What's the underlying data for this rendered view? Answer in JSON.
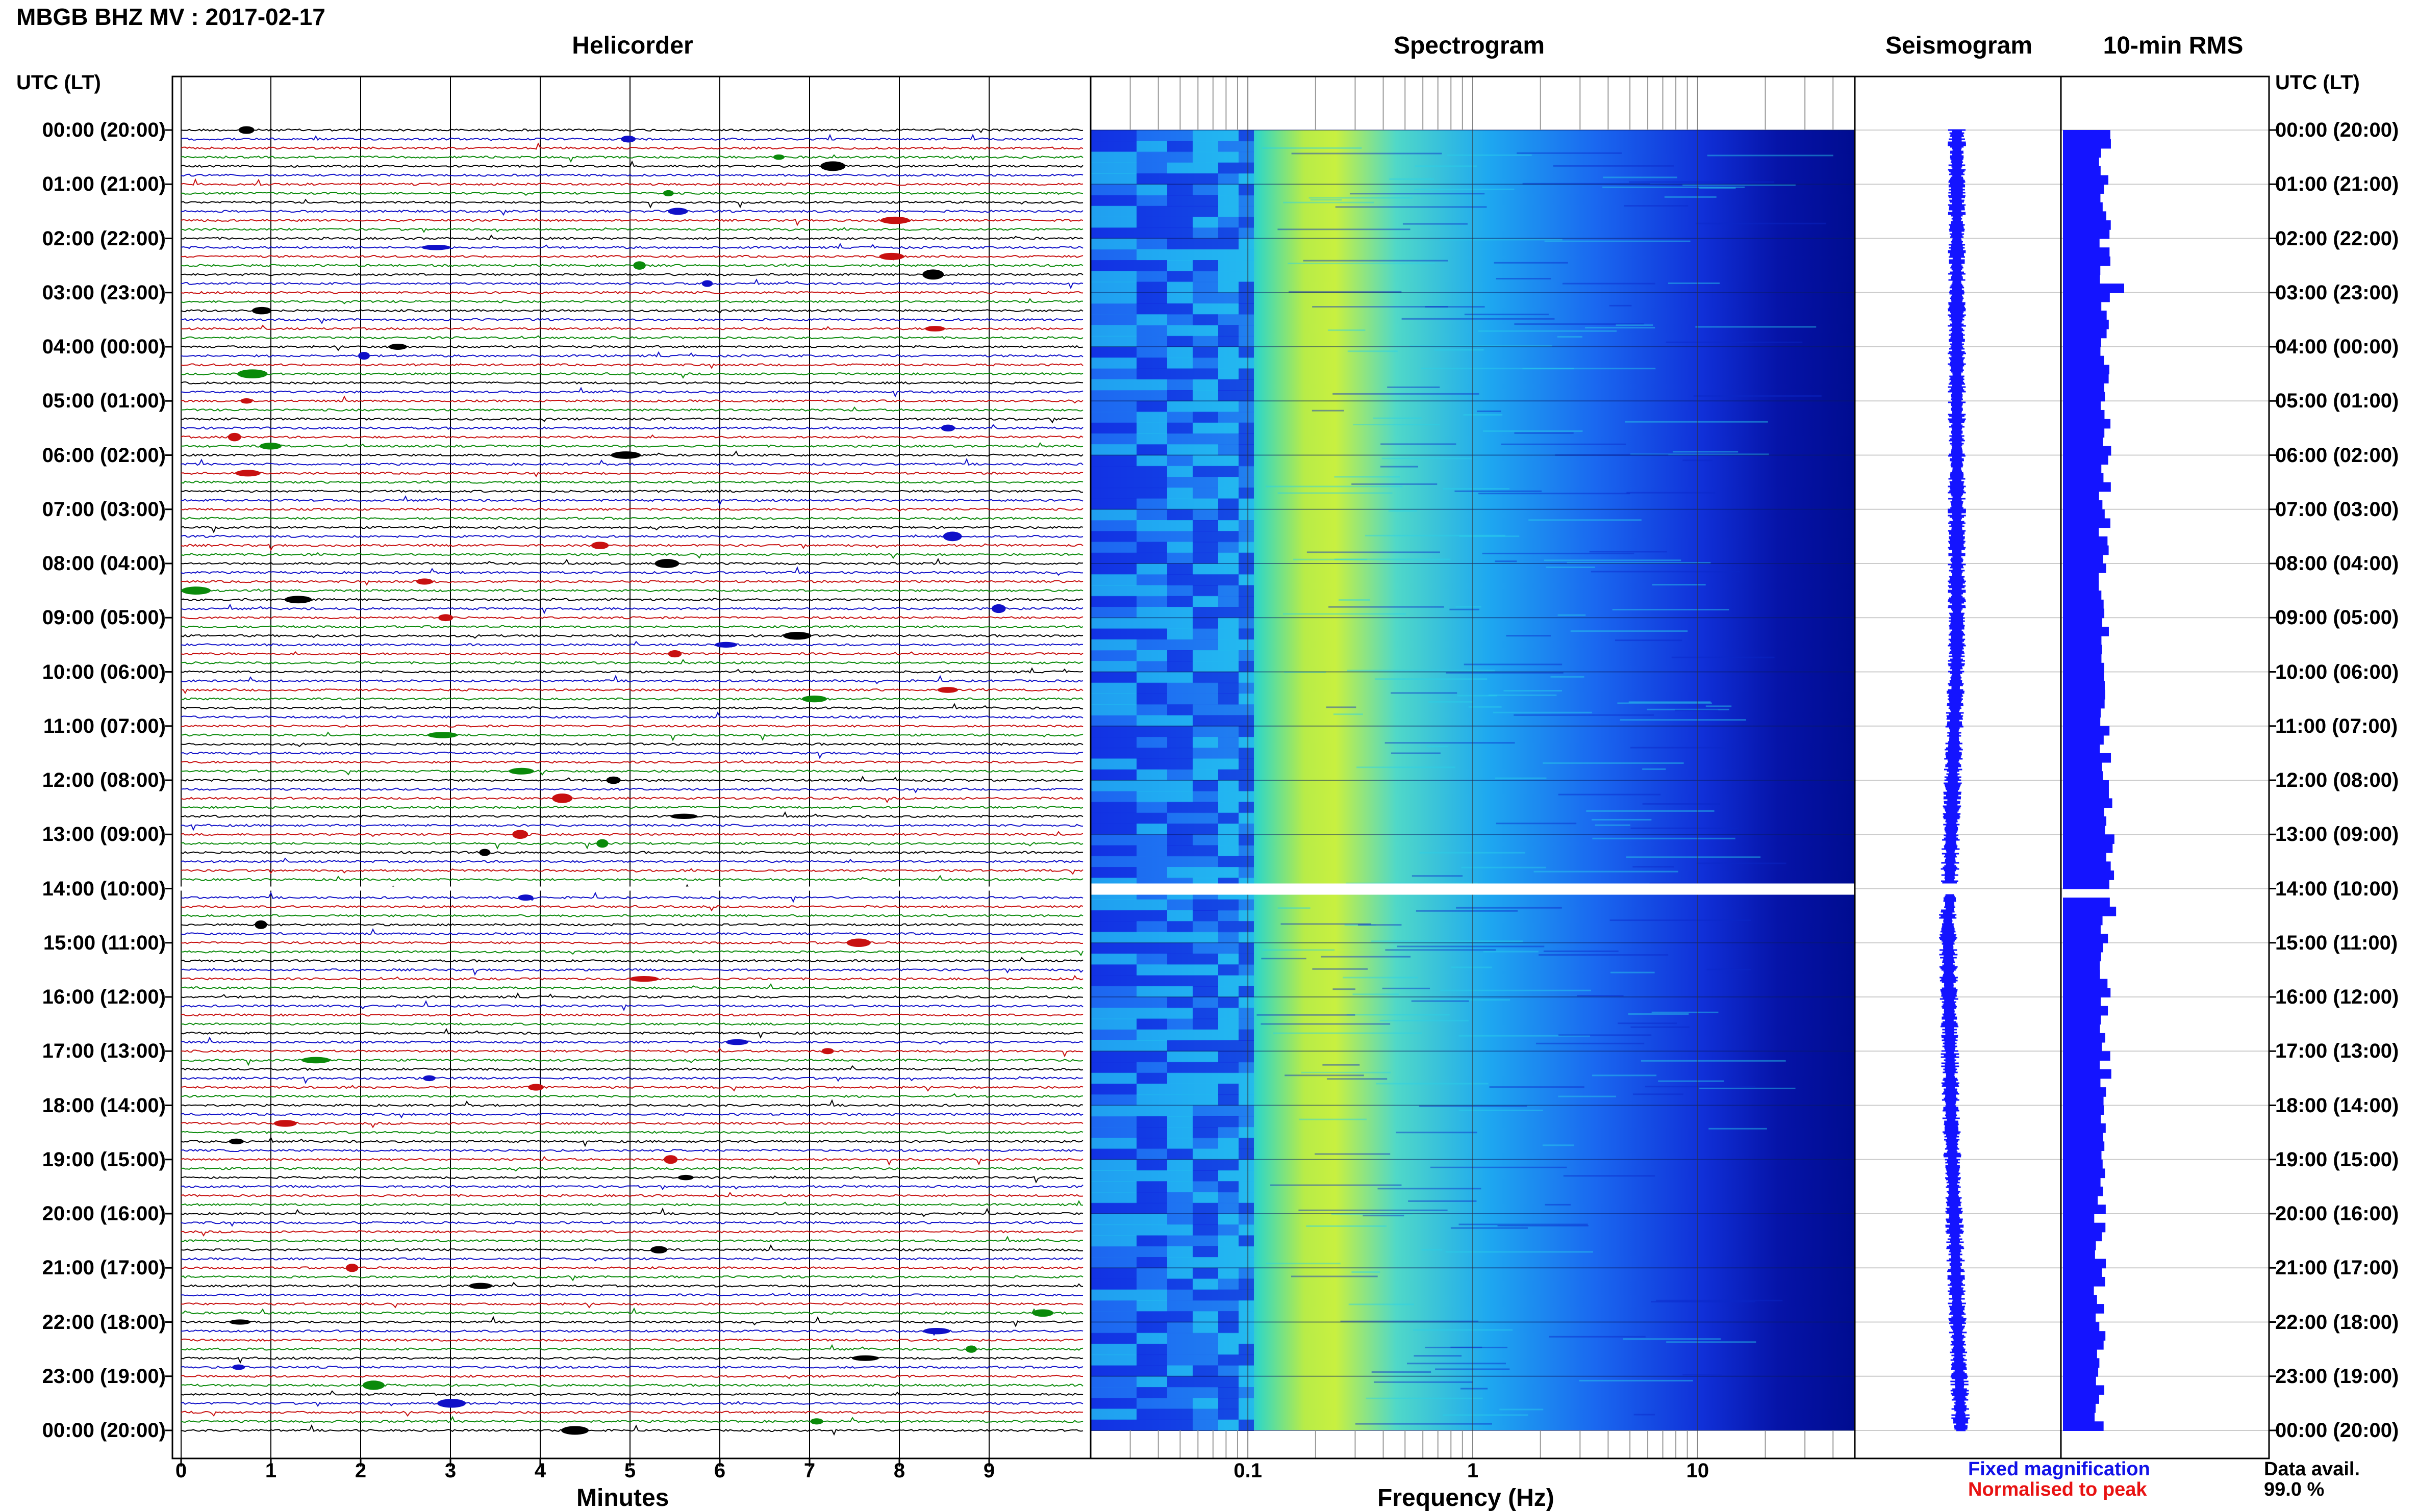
{
  "header": {
    "title": "MBGB BHZ MV : 2017-02-17"
  },
  "panels": {
    "helicorder": "Helicorder",
    "spectrogram": "Spectrogram",
    "seismogram": "Seismogram",
    "rms": "10-min RMS"
  },
  "axes": {
    "left_header": "UTC (LT)",
    "right_header": "UTC (LT)",
    "time_labels": [
      "00:00 (20:00)",
      "01:00 (21:00)",
      "02:00 (22:00)",
      "03:00 (23:00)",
      "04:00 (00:00)",
      "05:00 (01:00)",
      "06:00 (02:00)",
      "07:00 (03:00)",
      "08:00 (04:00)",
      "09:00 (05:00)",
      "10:00 (06:00)",
      "11:00 (07:00)",
      "12:00 (08:00)",
      "13:00 (09:00)",
      "14:00 (10:00)",
      "15:00 (11:00)",
      "16:00 (12:00)",
      "17:00 (13:00)",
      "18:00 (14:00)",
      "19:00 (15:00)",
      "20:00 (16:00)",
      "21:00 (17:00)",
      "22:00 (18:00)",
      "23:00 (19:00)",
      "00:00 (20:00)"
    ],
    "minutes_ticks": [
      "0",
      "1",
      "2",
      "3",
      "4",
      "5",
      "6",
      "7",
      "8",
      "9"
    ],
    "minutes_title": "Minutes",
    "frequency_ticks": [
      "0.1",
      "1",
      "10"
    ],
    "frequency_title": "Frequency (Hz)"
  },
  "legend": {
    "fixed": "Fixed magnification",
    "normalised": "Normalised to peak",
    "avail_label": "Data avail.",
    "avail_value": "99.0 %"
  },
  "colors": {
    "helicorder_traces": [
      "#000000",
      "#1010c8",
      "#c81010",
      "#0a8a0a"
    ],
    "spectrogram_low": "#00008b",
    "spectrogram_mid": "#1e64ff",
    "spectrogram_high": "#00e0e0",
    "spectrogram_peak": "#d8f030",
    "seismogram_trace": "#1414ff",
    "rms_bars": "#1414ff"
  },
  "data_gap": {
    "start_label": "14:00 (10:00)"
  }
}
